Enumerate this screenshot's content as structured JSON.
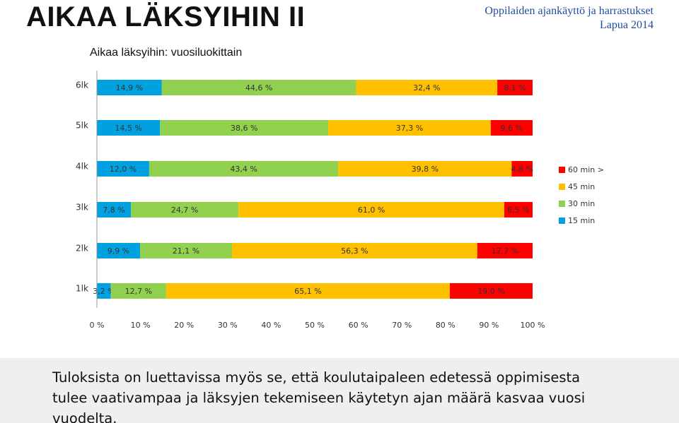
{
  "header": {
    "title": "AIKAA LÄKSYIHIN II",
    "subtitle_line1": "Oppilaiden ajankäyttö ja harrastukset",
    "subtitle_line2": "Lapua 2014"
  },
  "chart_data": {
    "type": "bar",
    "orientation": "horizontal",
    "stacked": "percent",
    "title": "Aikaa läksyihin: vuosiluokittain",
    "categories": [
      "6lk",
      "5lk",
      "4lk",
      "3lk",
      "2lk",
      "1lk"
    ],
    "series": [
      {
        "name": "15 min",
        "color": "#00a1e0",
        "values": [
          14.9,
          14.5,
          12.0,
          7.8,
          9.9,
          3.2
        ],
        "labels": [
          "14,9 %",
          "14,5 %",
          "12,0 %",
          "7,8 %",
          "9,9 %",
          "3,2 %"
        ]
      },
      {
        "name": "30 min",
        "color": "#92d050",
        "values": [
          44.6,
          38.6,
          43.4,
          24.7,
          21.1,
          12.7
        ],
        "labels": [
          "44,6 %",
          "38,6 %",
          "43,4 %",
          "24,7 %",
          "21,1 %",
          "12,7 %"
        ]
      },
      {
        "name": "45 min",
        "color": "#ffc000",
        "values": [
          32.4,
          37.3,
          39.8,
          61.0,
          56.3,
          65.1
        ],
        "labels": [
          "32,4 %",
          "37,3 %",
          "39,8 %",
          "61,0 %",
          "56,3 %",
          "65,1 %"
        ]
      },
      {
        "name": "60 min >",
        "color": "#ff0000",
        "values": [
          8.1,
          9.6,
          4.8,
          6.5,
          12.7,
          19.0
        ],
        "labels": [
          "8,1 %",
          "9,6 %",
          "4,8 %",
          "6,5 %",
          "12,7 %",
          "19,0 %"
        ]
      }
    ],
    "legend_order": [
      "60 min >",
      "45 min",
      "30 min",
      "15 min"
    ],
    "legend_position": "right",
    "xlim": [
      0,
      100
    ],
    "xticks": [
      "0 %",
      "10 %",
      "20 %",
      "30 %",
      "40 %",
      "50 %",
      "60 %",
      "70 %",
      "80 %",
      "90 %",
      "100 %"
    ],
    "grid": false
  },
  "footer": {
    "text": "Tuloksista on luettavissa myös se, että koulutaipaleen edetessä oppimisesta tulee vaativampaa ja läksyjen tekemiseen käytetyn ajan määrä kasvaa vuosi vuodelta."
  }
}
